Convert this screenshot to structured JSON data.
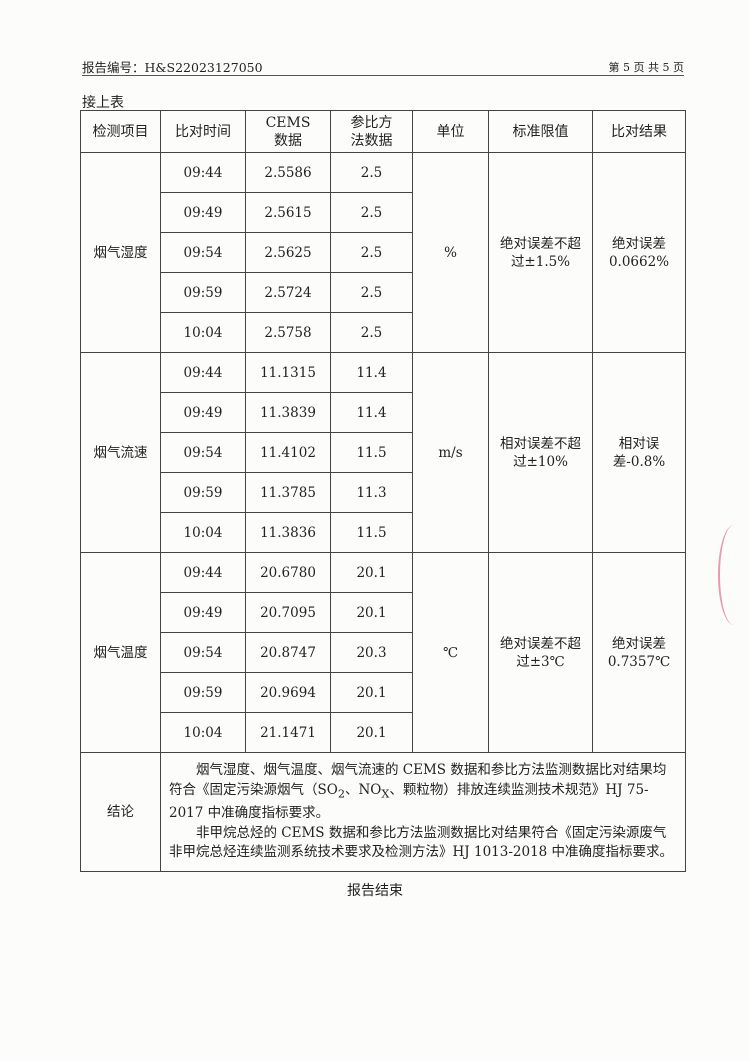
{
  "header": {
    "report_no": "报告编号：H&S22023127050",
    "page": "第 5 页 共 5 页"
  },
  "continued": "接上表",
  "columns": [
    "检测项目",
    "比对时间",
    "CEMS数据",
    "参比方法数据",
    "单位",
    "标准限值",
    "比对结果"
  ],
  "groups": [
    {
      "item": "烟气湿度",
      "unit": "%",
      "limit": "绝对误差不超过±1.5%",
      "result": "绝对误差0.0662%",
      "rows": [
        [
          "09:44",
          "2.5586",
          "2.5"
        ],
        [
          "09:49",
          "2.5615",
          "2.5"
        ],
        [
          "09:54",
          "2.5625",
          "2.5"
        ],
        [
          "09:59",
          "2.5724",
          "2.5"
        ],
        [
          "10:04",
          "2.5758",
          "2.5"
        ]
      ]
    },
    {
      "item": "烟气流速",
      "unit": "m/s",
      "limit": "相对误差不超过±10%",
      "result": "相对误差-0.8%",
      "rows": [
        [
          "09:44",
          "11.1315",
          "11.4"
        ],
        [
          "09:49",
          "11.3839",
          "11.4"
        ],
        [
          "09:54",
          "11.4102",
          "11.5"
        ],
        [
          "09:59",
          "11.3785",
          "11.3"
        ],
        [
          "10:04",
          "11.3836",
          "11.5"
        ]
      ]
    },
    {
      "item": "烟气温度",
      "unit": "℃",
      "limit": "绝对误差不超过±3℃",
      "result": "绝对误差0.7357℃",
      "rows": [
        [
          "09:44",
          "20.6780",
          "20.1"
        ],
        [
          "09:49",
          "20.7095",
          "20.1"
        ],
        [
          "09:54",
          "20.8747",
          "20.3"
        ],
        [
          "09:59",
          "20.9694",
          "20.1"
        ],
        [
          "10:04",
          "21.1471",
          "20.1"
        ]
      ]
    }
  ],
  "conclusion": {
    "label": "结论",
    "p1a": "烟气湿度、烟气温度、烟气流速的 CEMS 数据和参比方法监测数据比对结果均符合《固定污染源烟气（SO",
    "p1sub1": "2",
    "p1b": "、NO",
    "p1sub2": "X",
    "p1c": "、颗粒物）排放连续监测技术规范》HJ 75-2017 中准确度指标要求。",
    "p2": "非甲烷总烃的 CEMS 数据和参比方法监测数据比对结果符合《固定污染源废气非甲烷总烃连续监测系统技术要求及检测方法》HJ 1013-2018 中准确度指标要求。"
  },
  "end": "报告结束"
}
